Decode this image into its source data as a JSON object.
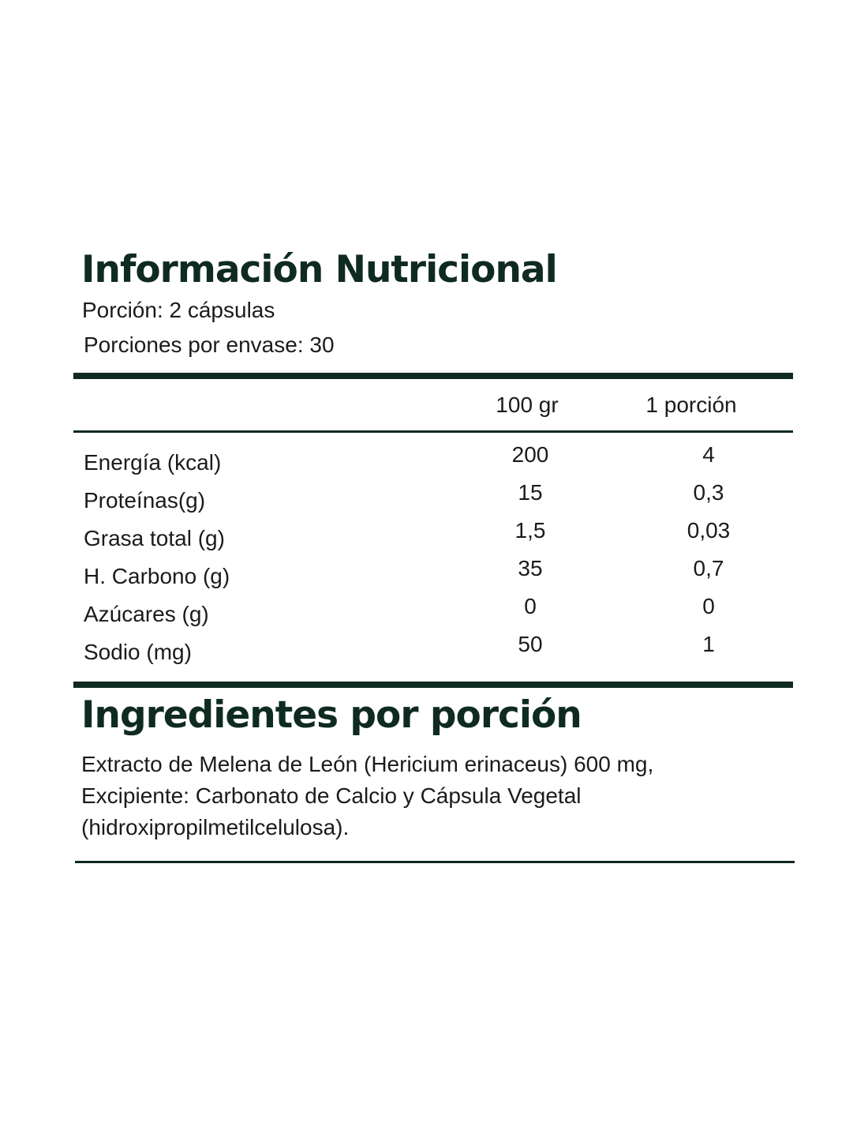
{
  "title": "Información Nutricional",
  "serving": "Porción: 2 cápsulas",
  "servings_per_container": "Porciones por envase: 30",
  "table": {
    "columns": [
      "100 gr",
      "1 porción"
    ],
    "rows": [
      [
        "Energía (kcal)",
        "200",
        "4"
      ],
      [
        "Proteínas(g)",
        "15",
        "0,3"
      ],
      [
        "Grasa total (g)",
        "1,5",
        "0,03"
      ],
      [
        "H. Carbono (g)",
        "35",
        "0,7"
      ],
      [
        "Azúcares (g)",
        "0",
        "0"
      ],
      [
        "Sodio (mg)",
        "50",
        "1"
      ]
    ]
  },
  "ingredients": {
    "title": "Ingredientes por porción",
    "lines": [
      "Extracto de Melena de León (Hericium erinaceus) 600 mg,",
      "Excipiente: Carbonato de Calcio y Cápsula Vegetal",
      "(hidroxipropilmetilcelulosa)."
    ]
  }
}
